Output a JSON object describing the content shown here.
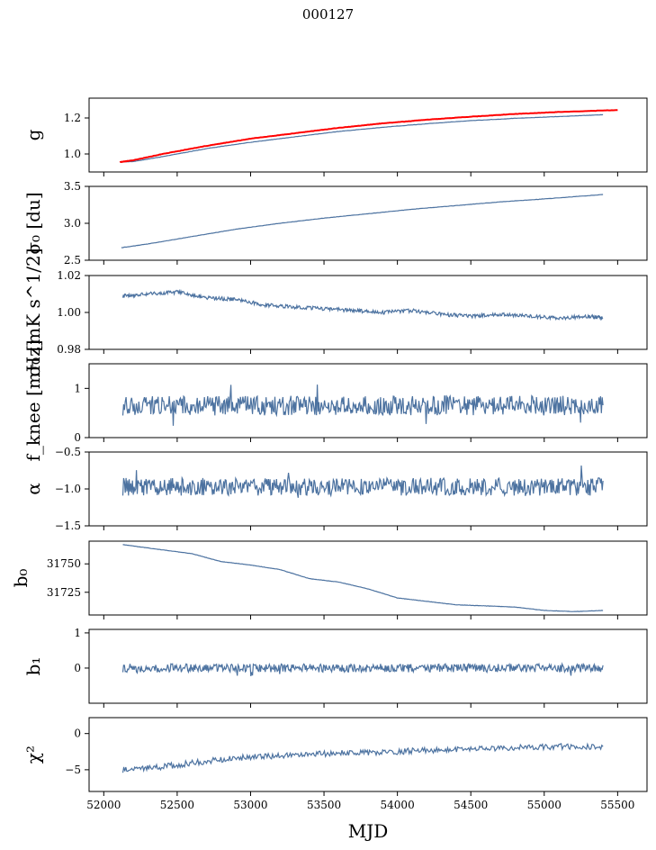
{
  "figure": {
    "title": "000127"
  },
  "colors": {
    "series": "#4c72a0",
    "overlay": "#ff0000",
    "axes": "#000000"
  },
  "chart_data": [
    {
      "type": "line",
      "ylabel": "g",
      "ylim": [
        0.9,
        1.31
      ],
      "yticks": [
        1.0,
        1.2
      ],
      "ytick_labels": [
        "1.0",
        "1.2"
      ],
      "series": [
        {
          "color": "#4c72a0",
          "x": [
            52110,
            52200,
            52400,
            52700,
            53000,
            53300,
            53600,
            53900,
            54200,
            54500,
            54800,
            55100,
            55400
          ],
          "values": [
            0.955,
            0.958,
            0.985,
            1.03,
            1.065,
            1.095,
            1.125,
            1.148,
            1.168,
            1.185,
            1.198,
            1.208,
            1.218
          ]
        },
        {
          "color": "#ff0000",
          "x": [
            52110,
            52200,
            52400,
            52700,
            53000,
            53300,
            53600,
            53900,
            54200,
            54500,
            54800,
            55100,
            55500
          ],
          "values": [
            0.955,
            0.965,
            1.0,
            1.045,
            1.085,
            1.115,
            1.145,
            1.17,
            1.19,
            1.207,
            1.222,
            1.233,
            1.244
          ]
        }
      ]
    },
    {
      "type": "line",
      "ylabel": "σ₀ [du]",
      "ylim": [
        2.5,
        3.5
      ],
      "yticks": [
        2.5,
        3.0,
        3.5
      ],
      "ytick_labels": [
        "2.5",
        "3.0",
        "3.5"
      ],
      "series": [
        {
          "color": "#4c72a0",
          "x": [
            52120,
            52300,
            52600,
            52900,
            53200,
            53500,
            53800,
            54100,
            54400,
            54700,
            55000,
            55400
          ],
          "values": [
            2.67,
            2.72,
            2.82,
            2.92,
            3.0,
            3.07,
            3.13,
            3.19,
            3.24,
            3.29,
            3.33,
            3.39
          ]
        }
      ]
    },
    {
      "type": "line",
      "ylabel": "σ₀ [mK s^1/2]",
      "ylim": [
        0.98,
        1.02
      ],
      "yticks": [
        0.98,
        1.0,
        1.02
      ],
      "ytick_labels": [
        "0.98",
        "1.00",
        "1.02"
      ],
      "series": [
        {
          "color": "#4c72a0",
          "x": [
            52130,
            52300,
            52500,
            52700,
            52900,
            53100,
            53300,
            53500,
            53700,
            53900,
            54100,
            54300,
            54500,
            54700,
            54900,
            55100,
            55300,
            55400
          ],
          "values": [
            1.009,
            1.01,
            1.011,
            1.008,
            1.007,
            1.004,
            1.003,
            1.002,
            1.001,
            1.0,
            1.001,
            0.999,
            0.998,
            0.999,
            0.998,
            0.997,
            0.998,
            0.997
          ]
        }
      ]
    },
    {
      "type": "line",
      "ylabel": "f_knee [mHz]",
      "ylim": [
        0,
        1.5
      ],
      "yticks": [
        0,
        1
      ],
      "ytick_labels": [
        "0",
        "1"
      ],
      "series": [
        {
          "color": "#4c72a0",
          "x_start": 52130,
          "x_end": 55400,
          "mean": 0.65,
          "spread": 0.2
        }
      ]
    },
    {
      "type": "line",
      "ylabel": "α",
      "ylim": [
        -1.5,
        -0.5
      ],
      "yticks": [
        -1.5,
        -1.0,
        -0.5
      ],
      "ytick_labels": [
        "−1.5",
        "−1.0",
        "−0.5"
      ],
      "series": [
        {
          "color": "#4c72a0",
          "x_start": 52130,
          "x_end": 55400,
          "mean": -0.97,
          "spread": 0.12
        }
      ]
    },
    {
      "type": "line",
      "ylabel": "b₀",
      "ylim": [
        31705,
        31770
      ],
      "yticks": [
        31725,
        31750
      ],
      "ytick_labels": [
        "31725",
        "31750"
      ],
      "series": [
        {
          "color": "#4c72a0",
          "x": [
            52130,
            52300,
            52600,
            52800,
            53000,
            53200,
            53400,
            53600,
            53800,
            54000,
            54200,
            54400,
            54600,
            54800,
            55000,
            55200,
            55400
          ],
          "values": [
            31767,
            31764,
            31759,
            31752,
            31749,
            31745,
            31737,
            31734,
            31728,
            31720,
            31717,
            31714,
            31713,
            31712,
            31709,
            31708,
            31709
          ]
        }
      ]
    },
    {
      "type": "line",
      "ylabel": "b₁",
      "ylim": [
        -1.0,
        1.1
      ],
      "yticks": [
        0,
        1
      ],
      "ytick_labels": [
        "0",
        "1"
      ],
      "series": [
        {
          "color": "#4c72a0",
          "x_start": 52130,
          "x_end": 55400,
          "mean": 0.0,
          "spread": 0.12
        }
      ]
    },
    {
      "type": "line",
      "ylabel": "χ²",
      "xlabel": "MJD",
      "ylim": [
        -8,
        2.2
      ],
      "yticks": [
        -5,
        0
      ],
      "ytick_labels": [
        "−5",
        "0"
      ],
      "xlim": [
        51900,
        55700
      ],
      "xticks": [
        52000,
        52500,
        53000,
        53500,
        54000,
        54500,
        55000,
        55500
      ],
      "xtick_labels": [
        "52000",
        "52500",
        "53000",
        "53500",
        "54000",
        "54500",
        "55000",
        "55500"
      ],
      "series": [
        {
          "color": "#4c72a0",
          "x": [
            52130,
            52400,
            52700,
            53000,
            53300,
            53600,
            53900,
            54200,
            54500,
            54800,
            55100,
            55400
          ],
          "values": [
            -5.0,
            -4.6,
            -3.8,
            -3.2,
            -3.0,
            -2.7,
            -2.6,
            -2.3,
            -2.2,
            -1.9,
            -1.8,
            -1.8
          ]
        }
      ]
    }
  ]
}
